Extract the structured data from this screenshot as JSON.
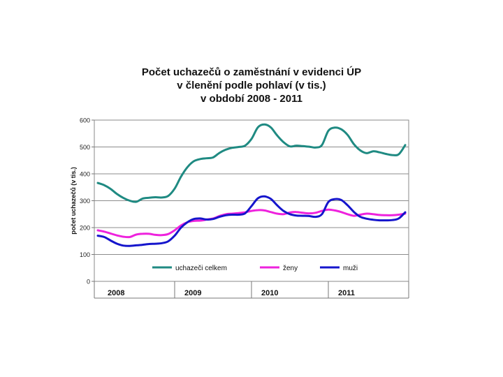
{
  "chart_data": {
    "type": "line",
    "title": [
      "Počet uchazečů o zaměstnání v evidenci ÚP",
      "v členění podle pohlaví (v tis.)",
      "v období 2008 - 2011"
    ],
    "ylabel": "počet uchazečů (v tis.)",
    "xlabel": "",
    "ylim": [
      0,
      600
    ],
    "yticks": [
      "0",
      "100",
      "200",
      "300",
      "400",
      "500",
      "600"
    ],
    "year_labels": [
      "2008",
      "2009",
      "2010",
      "2011"
    ],
    "grid": true,
    "legend_position": "bottom-inside",
    "x_start": "2008-01",
    "series": [
      {
        "name": "uchazeči celkem",
        "color": "#1f8a82",
        "values": [
          366,
          358,
          344,
          325,
          310,
          300,
          296,
          308,
          311,
          313,
          312,
          318,
          345,
          390,
          425,
          447,
          455,
          458,
          461,
          478,
          490,
          497,
          500,
          505,
          530,
          573,
          584,
          573,
          543,
          518,
          502,
          505,
          503,
          501,
          498,
          507,
          560,
          572,
          566,
          545,
          510,
          487,
          477,
          484,
          480,
          474,
          470,
          473,
          507
        ]
      },
      {
        "name": "ženy",
        "color": "#ee22dd",
        "values": [
          190,
          185,
          178,
          171,
          166,
          165,
          174,
          177,
          177,
          173,
          172,
          176,
          190,
          208,
          220,
          225,
          226,
          230,
          234,
          243,
          250,
          252,
          254,
          257,
          262,
          265,
          264,
          258,
          252,
          250,
          256,
          258,
          255,
          253,
          255,
          262,
          267,
          264,
          258,
          250,
          244,
          248,
          252,
          250,
          247,
          246,
          246,
          248,
          252
        ]
      },
      {
        "name": "muži",
        "color": "#1515cc",
        "values": [
          170,
          165,
          152,
          140,
          133,
          132,
          134,
          136,
          139,
          140,
          142,
          149,
          170,
          200,
          220,
          232,
          234,
          230,
          232,
          240,
          246,
          248,
          248,
          253,
          280,
          309,
          316,
          307,
          283,
          262,
          250,
          245,
          244,
          243,
          240,
          250,
          295,
          306,
          303,
          283,
          258,
          240,
          233,
          229,
          227,
          227,
          228,
          234,
          257
        ]
      }
    ]
  }
}
